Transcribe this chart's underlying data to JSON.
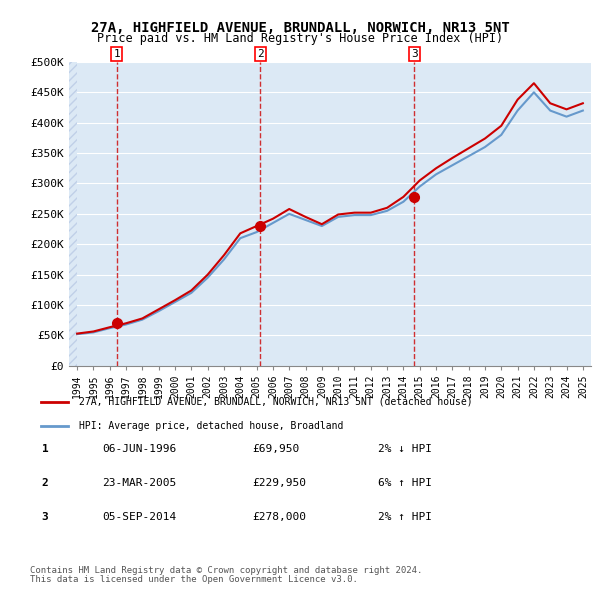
{
  "title": "27A, HIGHFIELD AVENUE, BRUNDALL, NORWICH, NR13 5NT",
  "subtitle": "Price paid vs. HM Land Registry's House Price Index (HPI)",
  "ylabel": "",
  "ylim": [
    0,
    500000
  ],
  "yticks": [
    0,
    50000,
    100000,
    150000,
    200000,
    250000,
    300000,
    350000,
    400000,
    450000,
    500000
  ],
  "ytick_labels": [
    "£0",
    "£50K",
    "£100K",
    "£150K",
    "£200K",
    "£250K",
    "£300K",
    "£350K",
    "£400K",
    "£450K",
    "£500K"
  ],
  "background_color": "#ffffff",
  "plot_bg_color": "#dce9f5",
  "hatch_color": "#c0d0e8",
  "grid_color": "#ffffff",
  "sale_color": "#cc0000",
  "hpi_color": "#6699cc",
  "vline_color": "#cc0000",
  "purchases": [
    {
      "label": "1",
      "date_x": 1996.43,
      "price": 69950,
      "arrow": "↓",
      "pct": "2%",
      "date_str": "06-JUN-1996",
      "price_str": "£69,950"
    },
    {
      "label": "2",
      "date_x": 2005.23,
      "price": 229950,
      "arrow": "↑",
      "pct": "6%",
      "date_str": "23-MAR-2005",
      "price_str": "£229,950"
    },
    {
      "label": "3",
      "date_x": 2014.68,
      "price": 278000,
      "arrow": "↑",
      "pct": "2%",
      "date_str": "05-SEP-2014",
      "price_str": "£278,000"
    }
  ],
  "legend_entry1": "27A, HIGHFIELD AVENUE, BRUNDALL, NORWICH, NR13 5NT (detached house)",
  "legend_entry2": "HPI: Average price, detached house, Broadland",
  "footer1": "Contains HM Land Registry data © Crown copyright and database right 2024.",
  "footer2": "This data is licensed under the Open Government Licence v3.0.",
  "hpi_data": {
    "years": [
      1994,
      1995,
      1996,
      1997,
      1998,
      1999,
      2000,
      2001,
      2002,
      2003,
      2004,
      2005,
      2006,
      2007,
      2008,
      2009,
      2010,
      2011,
      2012,
      2013,
      2014,
      2015,
      2016,
      2017,
      2018,
      2019,
      2020,
      2021,
      2022,
      2023,
      2024,
      2025
    ],
    "values": [
      52000,
      55000,
      62000,
      68000,
      76000,
      90000,
      105000,
      120000,
      145000,
      175000,
      210000,
      220000,
      235000,
      250000,
      240000,
      230000,
      245000,
      248000,
      248000,
      255000,
      270000,
      295000,
      315000,
      330000,
      345000,
      360000,
      380000,
      420000,
      450000,
      420000,
      410000,
      420000
    ]
  },
  "sale_line_data": {
    "years": [
      1994,
      1995,
      1996,
      1997,
      1998,
      1999,
      2000,
      2001,
      2002,
      2003,
      2004,
      2005,
      2006,
      2007,
      2008,
      2009,
      2010,
      2011,
      2012,
      2013,
      2014,
      2015,
      2016,
      2017,
      2018,
      2019,
      2020,
      2021,
      2022,
      2023,
      2024,
      2025
    ],
    "values": [
      53000,
      56500,
      63500,
      70000,
      78000,
      93000,
      108000,
      124000,
      150000,
      182000,
      218000,
      229950,
      242000,
      258000,
      245000,
      233000,
      249000,
      252000,
      252000,
      260000,
      278000,
      305000,
      325000,
      342000,
      358000,
      374000,
      395000,
      438000,
      465000,
      432000,
      422000,
      432000
    ]
  },
  "xtick_years": [
    1994,
    1995,
    1996,
    1997,
    1998,
    1999,
    2000,
    2001,
    2002,
    2003,
    2004,
    2005,
    2006,
    2007,
    2008,
    2009,
    2010,
    2011,
    2012,
    2013,
    2014,
    2015,
    2016,
    2017,
    2018,
    2019,
    2020,
    2021,
    2022,
    2023,
    2024,
    2025
  ]
}
